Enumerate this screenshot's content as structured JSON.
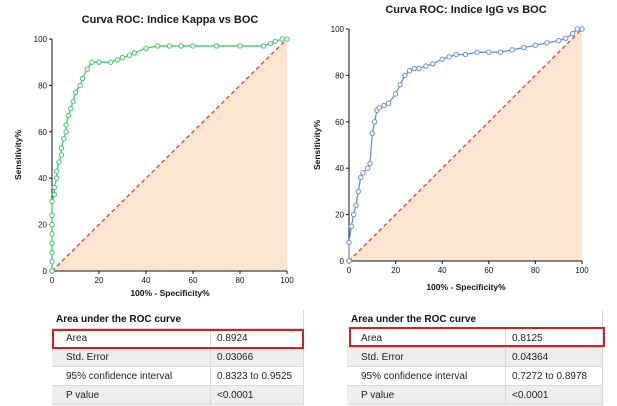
{
  "colors": {
    "fill": "#fce6d2",
    "diag": "#e34a33",
    "roc1": "#3ecb6a",
    "roc2": "#6b8de0",
    "highlight": "#d42020"
  },
  "chart_data": [
    {
      "type": "line",
      "title": "Curva ROC: Indice Kappa vs BOC",
      "xlabel": "100% - Specificity%",
      "ylabel": "Sensitivity%",
      "xlim": [
        0,
        100
      ],
      "ylim": [
        0,
        100
      ],
      "xticks": [
        0,
        20,
        40,
        60,
        80,
        100
      ],
      "yticks": [
        0,
        20,
        40,
        60,
        80,
        100
      ],
      "reference_line": "diagonal",
      "x": [
        0,
        0,
        0,
        0,
        0,
        0,
        0,
        0,
        1,
        1,
        2,
        2,
        3,
        4,
        4,
        5,
        6,
        6,
        7,
        8,
        9,
        10,
        12,
        13,
        15,
        17,
        20,
        25,
        28,
        30,
        33,
        35,
        40,
        45,
        50,
        55,
        60,
        70,
        80,
        90,
        93,
        95,
        98,
        100
      ],
      "y": [
        0,
        4,
        8,
        12,
        16,
        20,
        24,
        30,
        33,
        36,
        40,
        43,
        47,
        50,
        53,
        57,
        60,
        63,
        67,
        70,
        73,
        77,
        80,
        83,
        87,
        90,
        90,
        90,
        91,
        92,
        93,
        94,
        96,
        97,
        97,
        97,
        97,
        97,
        97,
        97,
        98,
        99,
        100,
        100
      ]
    },
    {
      "type": "line",
      "title": "Curva ROC: Indice IgG vs BOC",
      "xlabel": "100% - Specificity%",
      "ylabel": "Sensitivity%",
      "xlim": [
        0,
        100
      ],
      "ylim": [
        0,
        100
      ],
      "xticks": [
        0,
        20,
        40,
        60,
        80,
        100
      ],
      "yticks": [
        0,
        20,
        40,
        60,
        80,
        100
      ],
      "reference_line": "diagonal",
      "x": [
        0,
        0,
        1,
        2,
        3,
        4,
        5,
        6,
        8,
        9,
        10,
        11,
        12,
        13,
        15,
        17,
        20,
        22,
        24,
        26,
        28,
        30,
        33,
        36,
        40,
        43,
        46,
        50,
        55,
        60,
        65,
        70,
        75,
        80,
        85,
        90,
        93,
        96,
        98,
        100
      ],
      "y": [
        0,
        8,
        15,
        20,
        24,
        30,
        36,
        38,
        40,
        42,
        55,
        60,
        65,
        66,
        67,
        68,
        72,
        76,
        80,
        82,
        83,
        83,
        84,
        85,
        87,
        88,
        89,
        89,
        90,
        90,
        90,
        91,
        92,
        93,
        94,
        95,
        96,
        98,
        100,
        100
      ]
    }
  ],
  "tables": [
    {
      "header": "Area under the ROC curve",
      "rows": [
        {
          "label": "Area",
          "value": "0.8924"
        },
        {
          "label": "Std. Error",
          "value": "0.03066"
        },
        {
          "label": "95% confidence interval",
          "value": "0.8323 to 0.9525"
        },
        {
          "label": "P value",
          "value": "<0.0001"
        }
      ]
    },
    {
      "header": "Area under the ROC curve",
      "rows": [
        {
          "label": "Area",
          "value": "0.8125"
        },
        {
          "label": "Std. Error",
          "value": "0.04364"
        },
        {
          "label": "95% confidence interval",
          "value": "0.7272 to 0.8978"
        },
        {
          "label": "P value",
          "value": "<0.0001"
        }
      ]
    }
  ]
}
